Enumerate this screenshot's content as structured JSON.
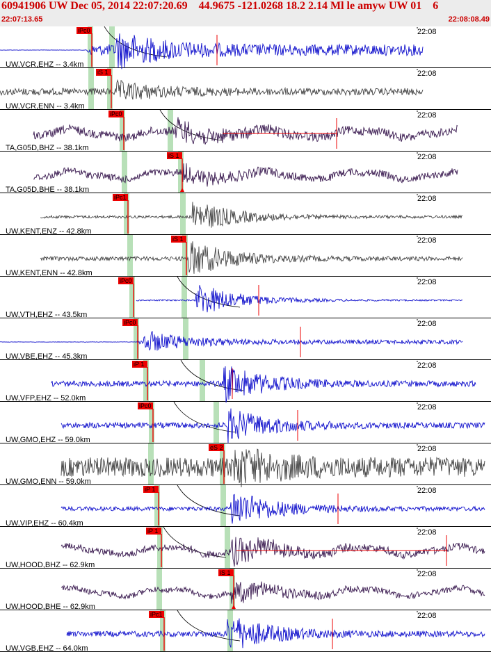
{
  "header": {
    "title": "60941906 UW Dec 05, 2014 22:07:20.69    44.9675 -121.0268 18.2 2.14 Ml le amyw UW 01    6",
    "start_time": "22:07:13.65",
    "end_time": "22:08:08.49"
  },
  "time_label": "22:08",
  "colors": {
    "header_text": "#cc0000",
    "pick_box": "#ee0000",
    "pick_line": "#ee0000",
    "p_band": "#b8e0b8",
    "blue": "#1010cc",
    "gray": "#444444",
    "purple": "#3a1a50"
  },
  "channels": [
    {
      "label": "UW,VCR,EHZ -- 3.4km",
      "pick": "iPc0",
      "color": "blue"
    },
    {
      "label": "UW,VCR,ENN -- 3.4km",
      "pick": "iS 1",
      "color": "gray"
    },
    {
      "label": "TA,G05D,BHZ -- 38.1km",
      "pick": "iPc0",
      "color": "purple"
    },
    {
      "label": "TA,G05D,BHE -- 38.1km",
      "pick": "iS 1",
      "color": "purple"
    },
    {
      "label": "UW,KENT,ENZ -- 42.8km",
      "pick": "iPc1",
      "color": "gray"
    },
    {
      "label": "UW,KENT,ENN -- 42.8km",
      "pick": "iS 1",
      "color": "gray"
    },
    {
      "label": "UW,VTH,EHZ -- 43.5km",
      "pick": "iPc0",
      "color": "blue"
    },
    {
      "label": "UW,VBE,EHZ -- 45.3km",
      "pick": "iPc0",
      "color": "blue"
    },
    {
      "label": "UW,VFP,EHZ -- 52.0km",
      "pick": "iP 1",
      "color": "blue"
    },
    {
      "label": "UW,GMO,EHZ -- 59.0km",
      "pick": "iPc0",
      "color": "blue"
    },
    {
      "label": "UW,GMO,ENN -- 59.0km",
      "pick": "eS 2",
      "color": "gray"
    },
    {
      "label": "UW,VIP,EHZ -- 60.4km",
      "pick": "iP 1",
      "color": "blue"
    },
    {
      "label": "UW,HOOD,BHZ -- 62.9km",
      "pick": "iP 1",
      "color": "purple"
    },
    {
      "label": "UW,HOOD,BHE -- 62.9km",
      "pick": "iS 1",
      "color": "purple"
    },
    {
      "label": "UW,VGB,EHZ -- 64.0km",
      "pick": "iPc1",
      "color": "blue"
    }
  ]
}
